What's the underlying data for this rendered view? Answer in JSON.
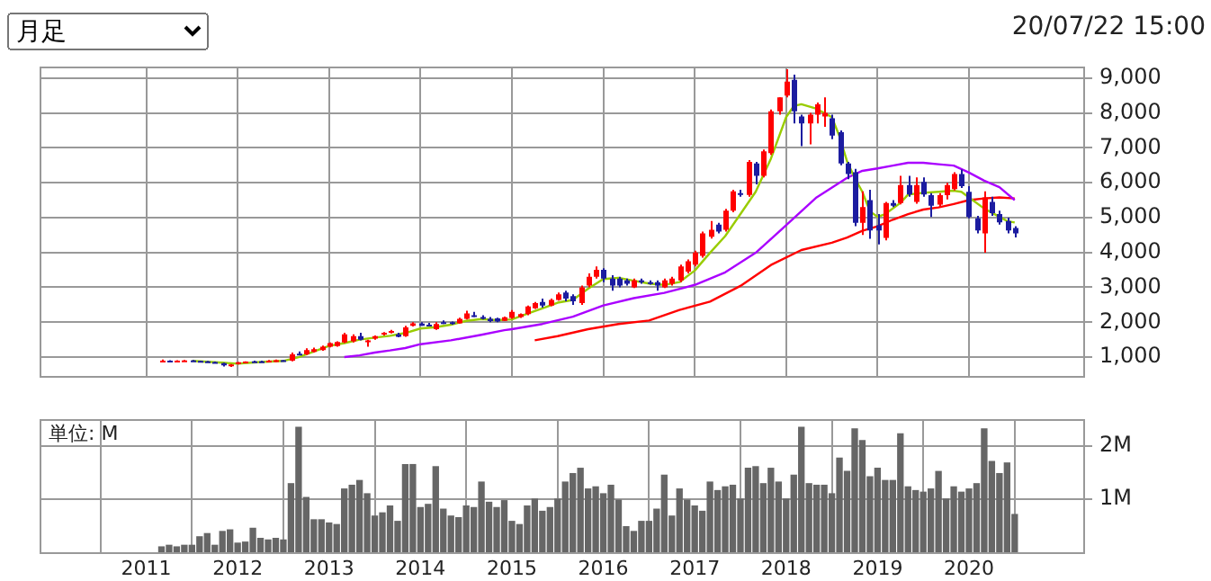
{
  "chart_data": [
    {
      "type": "candlestick",
      "title": "月足",
      "annotations": [
        "20/07/22 15:00"
      ],
      "xlim": [
        "2009-11",
        "2021-04"
      ],
      "xticks": [
        "2011",
        "2012",
        "2013",
        "2014",
        "2015",
        "2016",
        "2017",
        "2018",
        "2019",
        "2020"
      ],
      "ylim": [
        470,
        9320
      ],
      "yticks": [
        {
          "value": 1000,
          "label": "1,000"
        },
        {
          "value": 2000,
          "label": "2,000"
        },
        {
          "value": 3000,
          "label": "3,000"
        },
        {
          "value": 4000,
          "label": "4,000"
        },
        {
          "value": 5000,
          "label": "5,000"
        },
        {
          "value": 6000,
          "label": "6,000"
        },
        {
          "value": 7000,
          "label": "7,000"
        },
        {
          "value": 8000,
          "label": "8,000"
        },
        {
          "value": 9000,
          "label": "9,000"
        }
      ],
      "grid": true,
      "tick_labels": "y",
      "series": [
        {
          "type": "line",
          "color": "#99cc00",
          "x": [
            "2011-07",
            "2011-11",
            "2012-01",
            "2012-04",
            "2012-07",
            "2012-09",
            "2012-11",
            "2013-01",
            "2013-03",
            "2013-05",
            "2013-07",
            "2013-09",
            "2013-11",
            "2014-01",
            "2014-03",
            "2014-05",
            "2014-07",
            "2014-09",
            "2014-11",
            "2014-12",
            "2015-01",
            "2015-03",
            "2015-05",
            "2015-07",
            "2015-09",
            "2015-11",
            "2016-01",
            "2016-03",
            "2016-05",
            "2016-07",
            "2016-09",
            "2016-11",
            "2017-01",
            "2017-03",
            "2017-05",
            "2017-07",
            "2017-09",
            "2017-11",
            "2018-01",
            "2018-02",
            "2018-03",
            "2018-05",
            "2018-07",
            "2018-08",
            "2018-09",
            "2018-10",
            "2018-11",
            "2018-12",
            "2019-01",
            "2019-02",
            "2019-04",
            "2019-05",
            "2019-07",
            "2019-09",
            "2019-11",
            "2019-12",
            "2020-01",
            "2020-03",
            "2020-05",
            "2020-06",
            "2020-07"
          ],
          "values": [
            890,
            840,
            810,
            860,
            890,
            1000,
            1160,
            1320,
            1400,
            1500,
            1560,
            1610,
            1690,
            1820,
            1860,
            1930,
            2040,
            2090,
            2060,
            2070,
            2080,
            2240,
            2400,
            2560,
            2640,
            2960,
            3240,
            3270,
            3190,
            3110,
            3070,
            3150,
            3480,
            3990,
            4470,
            5100,
            5740,
            6690,
            7880,
            8200,
            8250,
            8120,
            7880,
            7330,
            6610,
            6140,
            5740,
            5180,
            5020,
            5100,
            5420,
            5660,
            5710,
            5740,
            5770,
            5740,
            5580,
            5260,
            5020,
            4900,
            4860
          ]
        },
        {
          "type": "line",
          "color": "#aa00ff",
          "x": [
            "2013-03",
            "2013-05",
            "2013-07",
            "2013-09",
            "2013-11",
            "2014-01",
            "2014-05",
            "2014-09",
            "2014-12",
            "2015-01",
            "2015-05",
            "2015-09",
            "2016-01",
            "2016-05",
            "2016-09",
            "2017-01",
            "2017-05",
            "2017-09",
            "2018-01",
            "2018-05",
            "2018-09",
            "2018-11",
            "2019-01",
            "2019-03",
            "2019-05",
            "2019-07",
            "2019-09",
            "2019-11",
            "2020-01",
            "2020-03",
            "2020-05",
            "2020-07"
          ],
          "values": [
            1000,
            1050,
            1130,
            1190,
            1260,
            1370,
            1480,
            1640,
            1770,
            1800,
            1950,
            2160,
            2480,
            2690,
            2840,
            3070,
            3430,
            3990,
            4780,
            5580,
            6140,
            6340,
            6410,
            6490,
            6570,
            6570,
            6530,
            6490,
            6290,
            6060,
            5870,
            5500
          ]
        },
        {
          "type": "line",
          "color": "#ff0000",
          "x": [
            "2015-04",
            "2015-07",
            "2015-11",
            "2016-03",
            "2016-07",
            "2016-11",
            "2017-03",
            "2017-07",
            "2017-11",
            "2018-03",
            "2018-07",
            "2018-09",
            "2018-11",
            "2019-01",
            "2019-03",
            "2019-05",
            "2019-07",
            "2019-09",
            "2019-11",
            "2020-01",
            "2020-03",
            "2020-05",
            "2020-07"
          ],
          "values": [
            1480,
            1600,
            1800,
            1950,
            2050,
            2350,
            2590,
            3040,
            3640,
            4070,
            4280,
            4430,
            4620,
            4750,
            4940,
            5100,
            5230,
            5290,
            5390,
            5500,
            5550,
            5580,
            5550
          ]
        },
        {
          "type": "candlestick",
          "color": "#ff0000",
          "x": [
            "2011-03",
            "2011-05",
            "2011-06",
            "2011-12",
            "2012-01",
            "2012-02",
            "2012-05",
            "2012-06",
            "2012-08",
            "2012-10",
            "2012-11",
            "2012-12",
            "2013-01",
            "2013-02",
            "2013-03",
            "2013-04",
            "2013-06",
            "2013-07",
            "2013-08",
            "2013-09",
            "2013-11",
            "2013-12",
            "2014-03",
            "2014-06",
            "2014-07",
            "2014-12",
            "2015-01",
            "2015-02",
            "2015-03",
            "2015-04",
            "2015-06",
            "2015-07",
            "2015-10",
            "2015-11",
            "2015-12",
            "2016-05",
            "2016-09",
            "2016-10",
            "2016-11",
            "2016-12",
            "2017-01",
            "2017-02",
            "2017-03",
            "2017-05",
            "2017-06",
            "2017-08",
            "2017-10",
            "2017-11",
            "2017-12",
            "2018-01",
            "2018-04",
            "2018-05",
            "2018-06",
            "2018-11",
            "2019-02",
            "2019-04",
            "2019-06",
            "2019-09",
            "2019-10",
            "2019-11",
            "2020-03"
          ],
          "ohlc": [
            [
              880,
              930,
              860,
              900
            ],
            [
              870,
              910,
              860,
              900
            ],
            [
              880,
              920,
              870,
              905
            ],
            [
              740,
              800,
              720,
              790
            ],
            [
              800,
              860,
              790,
              850
            ],
            [
              830,
              880,
              820,
              870
            ],
            [
              860,
              920,
              850,
              900
            ],
            [
              880,
              930,
              860,
              910
            ],
            [
              900,
              1130,
              880,
              1080
            ],
            [
              1080,
              1250,
              1060,
              1200
            ],
            [
              1150,
              1270,
              1130,
              1230
            ],
            [
              1200,
              1330,
              1180,
              1300
            ],
            [
              1300,
              1420,
              1280,
              1400
            ],
            [
              1320,
              1450,
              1300,
              1430
            ],
            [
              1420,
              1700,
              1400,
              1650
            ],
            [
              1450,
              1650,
              1420,
              1600
            ],
            [
              1450,
              1500,
              1300,
              1480
            ],
            [
              1530,
              1620,
              1500,
              1600
            ],
            [
              1650,
              1720,
              1620,
              1700
            ],
            [
              1700,
              1780,
              1680,
              1750
            ],
            [
              1600,
              1900,
              1580,
              1850
            ],
            [
              1900,
              2000,
              1880,
              1970
            ],
            [
              1800,
              2000,
              1780,
              1950
            ],
            [
              1970,
              2130,
              1960,
              2100
            ],
            [
              2100,
              2330,
              2080,
              2250
            ],
            [
              2040,
              2160,
              2030,
              2140
            ],
            [
              2120,
              2350,
              2100,
              2300
            ],
            [
              2150,
              2250,
              2120,
              2230
            ],
            [
              2230,
              2480,
              2200,
              2450
            ],
            [
              2400,
              2580,
              2380,
              2550
            ],
            [
              2480,
              2680,
              2460,
              2640
            ],
            [
              2640,
              2850,
              2620,
              2800
            ],
            [
              2550,
              3050,
              2500,
              3000
            ],
            [
              3050,
              3400,
              3000,
              3300
            ],
            [
              3300,
              3600,
              3250,
              3500
            ],
            [
              3000,
              3250,
              2980,
              3200
            ],
            [
              3000,
              3250,
              2980,
              3200
            ],
            [
              3100,
              3300,
              3050,
              3250
            ],
            [
              3200,
              3650,
              3150,
              3600
            ],
            [
              3450,
              3800,
              3400,
              3750
            ],
            [
              3650,
              4050,
              3600,
              4000
            ],
            [
              3900,
              4600,
              3850,
              4550
            ],
            [
              4450,
              4900,
              4400,
              4650
            ],
            [
              4650,
              5250,
              4600,
              5200
            ],
            [
              5200,
              5800,
              5150,
              5750
            ],
            [
              5650,
              6650,
              5600,
              6600
            ],
            [
              6200,
              6950,
              6150,
              6900
            ],
            [
              6850,
              8100,
              6800,
              8050
            ],
            [
              8050,
              8450,
              7950,
              8450
            ],
            [
              8500,
              9250,
              8450,
              8900
            ],
            [
              7700,
              8000,
              7100,
              7950
            ],
            [
              7950,
              8300,
              7700,
              8250
            ],
            [
              7900,
              8450,
              7600,
              8000
            ],
            [
              4850,
              5750,
              4500,
              5300
            ],
            [
              4420,
              5450,
              4350,
              5420
            ],
            [
              5420,
              6200,
              5380,
              5930
            ],
            [
              5450,
              6150,
              5400,
              5930
            ],
            [
              5370,
              5700,
              5300,
              5640
            ],
            [
              5640,
              6000,
              5520,
              5930
            ],
            [
              5820,
              6300,
              5780,
              6250
            ],
            [
              4550,
              5750,
              3990,
              5580
            ]
          ]
        },
        {
          "type": "candlestick",
          "color": "#1c1ca0",
          "x": [
            "2011-04",
            "2011-07",
            "2011-08",
            "2011-09",
            "2011-10",
            "2011-11",
            "2012-03",
            "2012-04",
            "2012-07",
            "2012-09",
            "2013-05",
            "2013-10",
            "2014-01",
            "2014-02",
            "2014-04",
            "2014-05",
            "2014-08",
            "2014-09",
            "2014-10",
            "2014-11",
            "2015-05",
            "2015-08",
            "2015-09",
            "2016-01",
            "2016-02",
            "2016-03",
            "2016-04",
            "2016-06",
            "2016-07",
            "2016-08",
            "2017-04",
            "2017-07",
            "2017-09",
            "2018-02",
            "2018-03",
            "2018-07",
            "2018-08",
            "2018-09",
            "2018-10",
            "2018-12",
            "2019-01",
            "2019-03",
            "2019-05",
            "2019-07",
            "2019-08",
            "2019-12",
            "2020-01",
            "2020-02",
            "2020-04",
            "2020-05",
            "2020-06",
            "2020-07"
          ],
          "ohlc": [
            [
              900,
              910,
              870,
              880
            ],
            [
              905,
              920,
              880,
              890
            ],
            [
              890,
              900,
              860,
              870
            ],
            [
              880,
              890,
              850,
              860
            ],
            [
              860,
              870,
              820,
              830
            ],
            [
              830,
              840,
              730,
              760
            ],
            [
              880,
              900,
              860,
              870
            ],
            [
              880,
              900,
              860,
              865
            ],
            [
              910,
              920,
              880,
              900
            ],
            [
              1100,
              1160,
              1050,
              1080
            ],
            [
              1600,
              1700,
              1480,
              1500
            ],
            [
              1650,
              1700,
              1570,
              1580
            ],
            [
              1960,
              2000,
              1900,
              1900
            ],
            [
              1930,
              1980,
              1880,
              1900
            ],
            [
              2000,
              2050,
              1950,
              1970
            ],
            [
              2000,
              2020,
              1930,
              1970
            ],
            [
              2200,
              2300,
              2150,
              2180
            ],
            [
              2150,
              2200,
              2080,
              2100
            ],
            [
              2100,
              2150,
              2000,
              2030
            ],
            [
              2110,
              2130,
              2000,
              2020
            ],
            [
              2580,
              2680,
              2420,
              2480
            ],
            [
              2850,
              2900,
              2600,
              2680
            ],
            [
              2750,
              2800,
              2500,
              2600
            ],
            [
              3500,
              3550,
              3150,
              3250
            ],
            [
              3250,
              3350,
              2900,
              3050
            ],
            [
              3250,
              3300,
              3000,
              3050
            ],
            [
              3200,
              3250,
              3050,
              3100
            ],
            [
              3200,
              3250,
              3100,
              3150
            ],
            [
              3150,
              3200,
              3080,
              3130
            ],
            [
              3150,
              3200,
              2900,
              3050
            ],
            [
              4800,
              4850,
              4550,
              4600
            ],
            [
              5700,
              5800,
              5600,
              5650
            ],
            [
              6550,
              6600,
              5950,
              6200
            ],
            [
              8950,
              9100,
              7700,
              8050
            ],
            [
              7900,
              7950,
              7050,
              7700
            ],
            [
              7850,
              7950,
              7250,
              7350
            ],
            [
              7450,
              7500,
              6500,
              6550
            ],
            [
              6550,
              6600,
              6100,
              6250
            ],
            [
              6300,
              6400,
              4750,
              4850
            ],
            [
              5500,
              5800,
              4390,
              4630
            ],
            [
              4780,
              5100,
              4230,
              4630
            ],
            [
              5420,
              5500,
              5300,
              5340
            ],
            [
              5930,
              6200,
              5600,
              5660
            ],
            [
              6020,
              6150,
              5600,
              5660
            ],
            [
              5640,
              5700,
              5020,
              5340
            ],
            [
              6250,
              6380,
              5850,
              5900
            ],
            [
              5740,
              5900,
              4980,
              5020
            ],
            [
              4980,
              5050,
              4550,
              4630
            ],
            [
              5450,
              5600,
              5050,
              5130
            ],
            [
              5100,
              5200,
              4800,
              4860
            ],
            [
              4900,
              5000,
              4550,
              4630
            ],
            [
              4700,
              4750,
              4430,
              4550
            ]
          ]
        }
      ]
    },
    {
      "type": "bar",
      "ylabel": "単位: M",
      "color": "#666666",
      "xlim": [
        "2009-11",
        "2021-04"
      ],
      "xticks": [
        "2011",
        "2012",
        "2013",
        "2014",
        "2015",
        "2016",
        "2017",
        "2018",
        "2019",
        "2020"
      ],
      "ylim": [
        0,
        2.5
      ],
      "yticks": [
        {
          "value": 1,
          "label": "1M"
        },
        {
          "value": 2,
          "label": "2M"
        }
      ],
      "grid": true,
      "x": [
        "2011-03",
        "2011-04",
        "2011-05",
        "2011-06",
        "2011-07",
        "2011-08",
        "2011-09",
        "2011-10",
        "2011-11",
        "2011-12",
        "2012-01",
        "2012-02",
        "2012-03",
        "2012-04",
        "2012-05",
        "2012-06",
        "2012-07",
        "2012-08",
        "2012-09",
        "2012-10",
        "2012-11",
        "2012-12",
        "2013-01",
        "2013-02",
        "2013-03",
        "2013-04",
        "2013-05",
        "2013-06",
        "2013-07",
        "2013-08",
        "2013-09",
        "2013-10",
        "2013-11",
        "2013-12",
        "2014-01",
        "2014-02",
        "2014-03",
        "2014-04",
        "2014-05",
        "2014-06",
        "2014-07",
        "2014-08",
        "2014-09",
        "2014-10",
        "2014-11",
        "2014-12",
        "2015-01",
        "2015-02",
        "2015-03",
        "2015-04",
        "2015-05",
        "2015-06",
        "2015-07",
        "2015-08",
        "2015-09",
        "2015-10",
        "2015-11",
        "2015-12",
        "2016-01",
        "2016-02",
        "2016-03",
        "2016-04",
        "2016-05",
        "2016-06",
        "2016-07",
        "2016-08",
        "2016-09",
        "2016-10",
        "2016-11",
        "2016-12",
        "2017-01",
        "2017-02",
        "2017-03",
        "2017-04",
        "2017-05",
        "2017-06",
        "2017-07",
        "2017-08",
        "2017-09",
        "2017-10",
        "2017-11",
        "2017-12",
        "2018-01",
        "2018-02",
        "2018-03",
        "2018-04",
        "2018-05",
        "2018-06",
        "2018-07",
        "2018-08",
        "2018-09",
        "2018-10",
        "2018-11",
        "2018-12",
        "2019-01",
        "2019-02",
        "2019-03",
        "2019-04",
        "2019-05",
        "2019-06",
        "2019-07",
        "2019-08",
        "2019-09",
        "2019-10",
        "2019-11",
        "2019-12",
        "2020-01",
        "2020-02",
        "2020-03",
        "2020-04",
        "2020-05",
        "2020-06",
        "2020-07"
      ],
      "values": [
        0.1,
        0.13,
        0.1,
        0.13,
        0.13,
        0.29,
        0.35,
        0.13,
        0.39,
        0.42,
        0.17,
        0.19,
        0.45,
        0.26,
        0.23,
        0.26,
        0.23,
        1.29,
        2.35,
        1.03,
        0.61,
        0.61,
        0.55,
        0.52,
        1.19,
        1.26,
        1.35,
        1.1,
        0.68,
        0.74,
        0.87,
        0.58,
        1.65,
        1.65,
        0.84,
        0.9,
        1.61,
        0.81,
        0.68,
        0.65,
        0.87,
        0.84,
        1.32,
        0.94,
        0.84,
        0.97,
        0.58,
        0.52,
        0.87,
        1.0,
        0.77,
        0.84,
        1.0,
        1.32,
        1.48,
        1.58,
        1.19,
        1.23,
        1.1,
        1.26,
        0.98,
        0.48,
        0.39,
        0.58,
        0.58,
        0.81,
        1.45,
        0.68,
        1.19,
        0.98,
        0.87,
        0.77,
        1.32,
        1.16,
        1.23,
        1.26,
        1.0,
        1.58,
        1.61,
        1.29,
        1.58,
        1.32,
        1.0,
        1.45,
        2.35,
        1.29,
        1.26,
        1.26,
        1.1,
        1.77,
        1.52,
        2.32,
        2.1,
        1.42,
        1.58,
        1.35,
        1.35,
        2.23,
        1.23,
        1.16,
        1.13,
        1.19,
        1.52,
        1.0,
        1.23,
        1.13,
        1.19,
        1.29,
        2.32,
        1.71,
        1.48,
        1.68,
        0.71
      ]
    }
  ]
}
